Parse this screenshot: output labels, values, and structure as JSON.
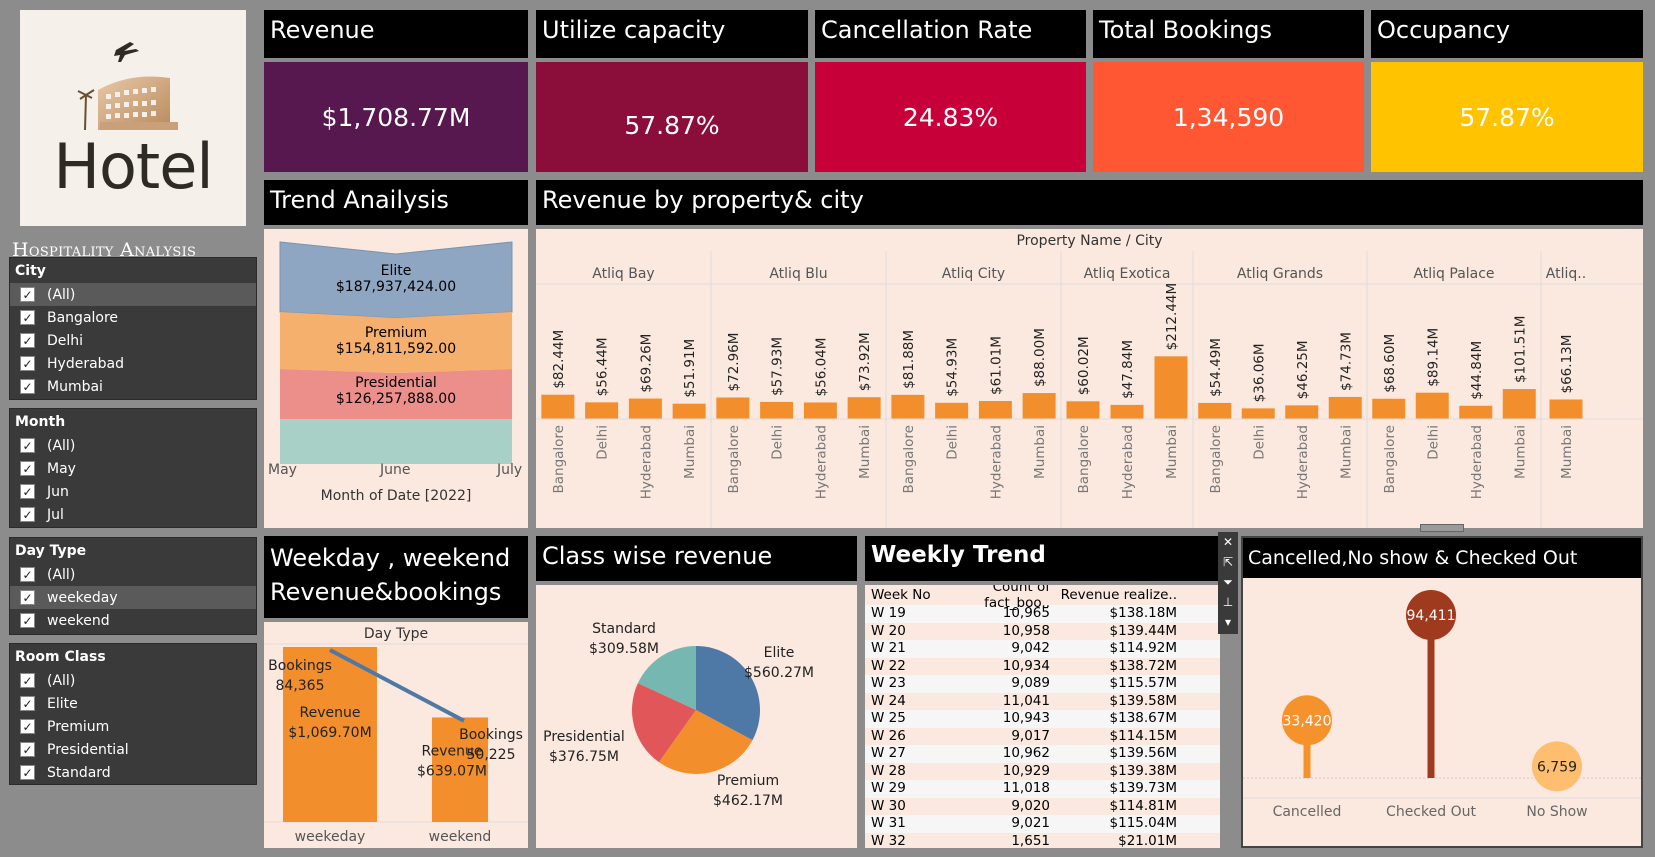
{
  "brand": {
    "logo_text": "Hotel",
    "title": "Hospitality Analysis"
  },
  "filters": {
    "city": {
      "title": "City",
      "items": [
        "(All)",
        "Bangalore",
        "Delhi",
        "Hyderabad",
        "Mumbai"
      ]
    },
    "month": {
      "title": "Month",
      "items": [
        "(All)",
        "May",
        "Jun",
        "Jul"
      ]
    },
    "day_type": {
      "title": "Day Type",
      "items": [
        "(All)",
        "weekeday",
        "weekend"
      ]
    },
    "room_class": {
      "title": "Room Class",
      "items": [
        "(All)",
        "Elite",
        "Premium",
        "Presidential",
        "Standard"
      ]
    }
  },
  "kpis": [
    {
      "title": "Revenue",
      "value": "$1,708.77M",
      "color": "#57174f"
    },
    {
      "title": "Utilize capacity",
      "value": "57.87%",
      "color": "#8b0e3a"
    },
    {
      "title": "Cancellation Rate",
      "value": "24.83%",
      "color": "#c8003a"
    },
    {
      "title": "Total Bookings",
      "value": "1,34,590",
      "color": "#ff5733"
    },
    {
      "title": "Occupancy",
      "value": "57.87%",
      "color": "#ffc300"
    }
  ],
  "panels": {
    "trend": "Trend Anailysis",
    "property": "Revenue by property& city",
    "weekday": "Weekday , weekend Revenue&bookings",
    "classwise": "Class wise revenue",
    "weekly": "Weekly Trend",
    "cancelled": "Cancelled,No show & Checked Out"
  },
  "chart_data": [
    {
      "type": "area",
      "xlabel": "Month of Date [2022]",
      "categories": [
        "May",
        "June",
        "July"
      ],
      "series": [
        {
          "name": "Elite",
          "label": "$187,937,424.00",
          "color": "#8fa6c2"
        },
        {
          "name": "Premium",
          "label": "$154,811,592.00",
          "color": "#f5b06e"
        },
        {
          "name": "Presidential",
          "label": "$126,257,888.00",
          "color": "#ec8f8b"
        },
        {
          "name": "",
          "label": "",
          "color": "#a9d0c6"
        }
      ]
    },
    {
      "type": "bar",
      "title": "Property Name  /  City",
      "groups": [
        {
          "name": "Atliq Bay",
          "bars": [
            {
              "city": "Bangalore",
              "label": "$82.44M",
              "value": 82.44
            },
            {
              "city": "Delhi",
              "label": "$56.44M",
              "value": 56.44
            },
            {
              "city": "Hyderabad",
              "label": "$69.26M",
              "value": 69.26
            },
            {
              "city": "Mumbai",
              "label": "$51.91M",
              "value": 51.91
            }
          ]
        },
        {
          "name": "Atliq Blu",
          "bars": [
            {
              "city": "Bangalore",
              "label": "$72.96M",
              "value": 72.96
            },
            {
              "city": "Delhi",
              "label": "$57.93M",
              "value": 57.93
            },
            {
              "city": "Hyderabad",
              "label": "$56.04M",
              "value": 56.04
            },
            {
              "city": "Mumbai",
              "label": "$73.92M",
              "value": 73.92
            }
          ]
        },
        {
          "name": "Atliq City",
          "bars": [
            {
              "city": "Bangalore",
              "label": "$81.88M",
              "value": 81.88
            },
            {
              "city": "Delhi",
              "label": "$54.93M",
              "value": 54.93
            },
            {
              "city": "Hyderabad",
              "label": "$61.01M",
              "value": 61.01
            },
            {
              "city": "Mumbai",
              "label": "$88.00M",
              "value": 88.0
            }
          ]
        },
        {
          "name": "Atliq Exotica",
          "bars": [
            {
              "city": "Bangalore",
              "label": "$60.02M",
              "value": 60.02
            },
            {
              "city": "Hyderabad",
              "label": "$47.84M",
              "value": 47.84
            },
            {
              "city": "Mumbai",
              "label": "$212.44M",
              "value": 212.44
            }
          ]
        },
        {
          "name": "Atliq Grands",
          "bars": [
            {
              "city": "Bangalore",
              "label": "$54.49M",
              "value": 54.49
            },
            {
              "city": "Delhi",
              "label": "$36.06M",
              "value": 36.06
            },
            {
              "city": "Hyderabad",
              "label": "$46.25M",
              "value": 46.25
            },
            {
              "city": "Mumbai",
              "label": "$74.73M",
              "value": 74.73
            }
          ]
        },
        {
          "name": "Atliq Palace",
          "bars": [
            {
              "city": "Bangalore",
              "label": "$68.60M",
              "value": 68.6
            },
            {
              "city": "Delhi",
              "label": "$89.14M",
              "value": 89.14
            },
            {
              "city": "Hyderabad",
              "label": "$44.84M",
              "value": 44.84
            },
            {
              "city": "Mumbai",
              "label": "$101.51M",
              "value": 101.51
            }
          ]
        },
        {
          "name": "Atliq..",
          "bars": [
            {
              "city": "Mumbai",
              "label": "$66.13M",
              "value": 66.13
            }
          ]
        }
      ],
      "bar_color": "#f28e2b"
    },
    {
      "type": "bar",
      "title": "Day Type",
      "categories": [
        "weekeday",
        "weekend"
      ],
      "bars": [
        {
          "label": "Revenue",
          "value_label": "$1,069.70M",
          "value": 1069.7
        },
        {
          "label": "Revenue",
          "value_label": "$639.07M",
          "value": 639.07
        }
      ],
      "line": [
        {
          "label": "Bookings",
          "value_label": "84,365",
          "value": 84365
        },
        {
          "label": "Bookings",
          "value_label": "50,225",
          "value": 50225
        }
      ]
    },
    {
      "type": "pie",
      "slices": [
        {
          "name": "Elite",
          "label": "$560.27M",
          "value": 560.27,
          "color": "#4e79a7"
        },
        {
          "name": "Premium",
          "label": "$462.17M",
          "value": 462.17,
          "color": "#f28e2b"
        },
        {
          "name": "Presidential",
          "label": "$376.75M",
          "value": 376.75,
          "color": "#e15759"
        },
        {
          "name": "Standard",
          "label": "$309.58M",
          "value": 309.58,
          "color": "#76b7b2"
        }
      ]
    },
    {
      "type": "table",
      "columns": [
        "Week No",
        "Count of fact_boo..",
        "Revenue realize.."
      ],
      "rows": [
        [
          "W 19",
          "10,965",
          "$138.18M"
        ],
        [
          "W 20",
          "10,958",
          "$139.44M"
        ],
        [
          "W 21",
          "9,042",
          "$114.92M"
        ],
        [
          "W 22",
          "10,934",
          "$138.72M"
        ],
        [
          "W 23",
          "9,089",
          "$115.57M"
        ],
        [
          "W 24",
          "11,041",
          "$139.58M"
        ],
        [
          "W 25",
          "10,943",
          "$138.67M"
        ],
        [
          "W 26",
          "9,017",
          "$114.15M"
        ],
        [
          "W 27",
          "10,962",
          "$139.56M"
        ],
        [
          "W 28",
          "10,929",
          "$139.38M"
        ],
        [
          "W 29",
          "11,018",
          "$139.73M"
        ],
        [
          "W 30",
          "9,020",
          "$114.81M"
        ],
        [
          "W 31",
          "9,021",
          "$115.04M"
        ],
        [
          "W 32",
          "1,651",
          "$21.01M"
        ]
      ]
    },
    {
      "type": "scatter",
      "categories": [
        "Cancelled",
        "Checked Out",
        "No Show"
      ],
      "values": [
        33420,
        94411,
        6759
      ],
      "labels": [
        "33,420",
        "94,411",
        "6,759"
      ],
      "colors": [
        "#f5922c",
        "#a03a1e",
        "#fdbf6f"
      ]
    }
  ]
}
